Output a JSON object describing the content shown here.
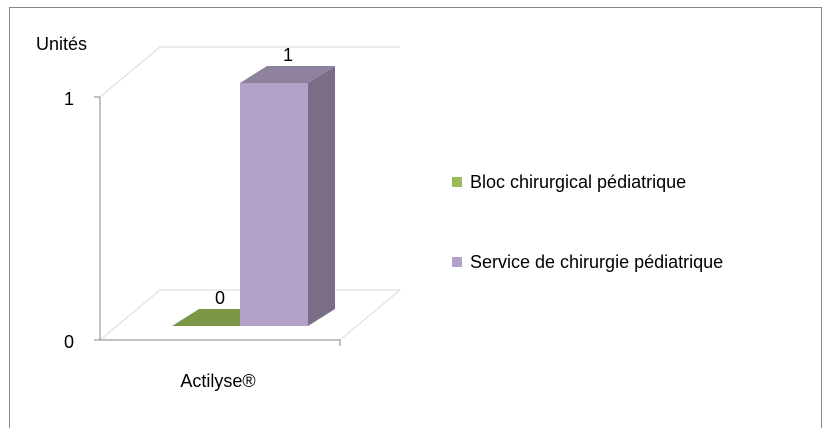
{
  "chart_data": {
    "type": "bar3d",
    "y_axis_label": "Unités",
    "categories": [
      "Actilyse®"
    ],
    "series": [
      {
        "name": "Bloc chirurgical pédiatrique",
        "color": "#9bbb59",
        "values": [
          0
        ]
      },
      {
        "name": "Service de chirurgie pédiatrique",
        "color": "#b3a2c7",
        "values": [
          1
        ]
      }
    ],
    "ylim": [
      0,
      1
    ],
    "yticks": [
      0,
      1
    ],
    "grid": true,
    "legend": "right",
    "data_labels": true
  }
}
